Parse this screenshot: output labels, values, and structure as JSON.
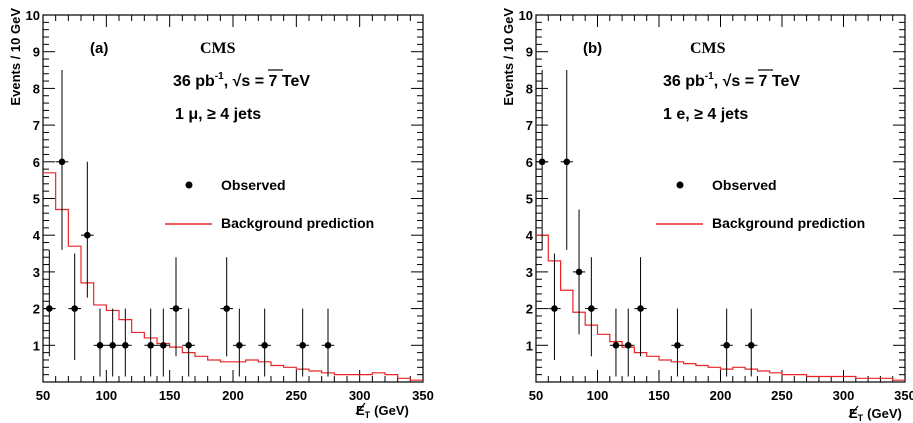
{
  "chart_data": [
    {
      "type": "scatter",
      "panel_label": "(a)",
      "experiment": "CMS",
      "lumi_text": "36 pb",
      "lumi_sup": "-1",
      "energy_text": "s = 7 TeV",
      "selection": "1 μ, ≥ 4 jets",
      "xlabel": "E",
      "xlabel_sub": "T",
      "xlabel_unit": "(GeV)",
      "ylabel": "Events / 10 GeV",
      "xlim": [
        50,
        350
      ],
      "ylim": [
        0,
        10
      ],
      "x_ticks": [
        "50",
        "100",
        "150",
        "200",
        "250",
        "300",
        "350"
      ],
      "y_ticks": [
        "1",
        "2",
        "3",
        "4",
        "5",
        "6",
        "7",
        "8",
        "9",
        "10"
      ],
      "legend_position": "right",
      "series": [
        {
          "name": "Observed",
          "color": "#000000",
          "points": [
            {
              "x": 55,
              "y": 2,
              "lo": 0.7,
              "hi": 3.6
            },
            {
              "x": 65,
              "y": 6,
              "lo": 3.6,
              "hi": 8.5
            },
            {
              "x": 75,
              "y": 2,
              "lo": 0.6,
              "hi": 3.5
            },
            {
              "x": 85,
              "y": 4,
              "lo": 2.3,
              "hi": 6.0
            },
            {
              "x": 95,
              "y": 1,
              "lo": 0.15,
              "hi": 2.0
            },
            {
              "x": 105,
              "y": 1,
              "lo": 0.15,
              "hi": 2.0
            },
            {
              "x": 115,
              "y": 1,
              "lo": 0.15,
              "hi": 2.0
            },
            {
              "x": 135,
              "y": 1,
              "lo": 0.15,
              "hi": 2.0
            },
            {
              "x": 145,
              "y": 1,
              "lo": 0.15,
              "hi": 2.0
            },
            {
              "x": 155,
              "y": 2,
              "lo": 0.7,
              "hi": 3.4
            },
            {
              "x": 165,
              "y": 1,
              "lo": 0.15,
              "hi": 2.0
            },
            {
              "x": 195,
              "y": 2,
              "lo": 0.7,
              "hi": 3.4
            },
            {
              "x": 205,
              "y": 1,
              "lo": 0.15,
              "hi": 2.0
            },
            {
              "x": 225,
              "y": 1,
              "lo": 0.15,
              "hi": 2.0
            },
            {
              "x": 255,
              "y": 1,
              "lo": 0.15,
              "hi": 2.0
            },
            {
              "x": 275,
              "y": 1,
              "lo": 0.15,
              "hi": 2.0
            }
          ]
        },
        {
          "name": "Background prediction",
          "color": "#e8262a",
          "bin_edges": [
            50,
            60,
            70,
            80,
            90,
            100,
            110,
            120,
            130,
            140,
            150,
            160,
            170,
            180,
            190,
            200,
            210,
            220,
            230,
            240,
            250,
            260,
            270,
            280,
            290,
            300,
            310,
            320,
            330,
            340,
            350
          ],
          "values": [
            5.7,
            4.7,
            3.7,
            2.7,
            2.1,
            1.95,
            1.7,
            1.35,
            1.2,
            1.05,
            0.95,
            0.8,
            0.7,
            0.6,
            0.55,
            0.55,
            0.6,
            0.55,
            0.45,
            0.4,
            0.35,
            0.3,
            0.25,
            0.2,
            0.2,
            0.2,
            0.25,
            0.2,
            0.1,
            0.05
          ]
        }
      ]
    },
    {
      "type": "scatter",
      "panel_label": "(b)",
      "experiment": "CMS",
      "lumi_text": "36 pb",
      "lumi_sup": "-1",
      "energy_text": "s = 7 TeV",
      "selection": "1 e, ≥ 4 jets",
      "xlabel": "E",
      "xlabel_sub": "T",
      "xlabel_unit": "(GeV)",
      "ylabel": "Events / 10 GeV",
      "xlim": [
        50,
        350
      ],
      "ylim": [
        0,
        10
      ],
      "x_ticks": [
        "50",
        "100",
        "150",
        "200",
        "250",
        "300",
        "350"
      ],
      "y_ticks": [
        "1",
        "2",
        "3",
        "4",
        "5",
        "6",
        "7",
        "8",
        "9",
        "10"
      ],
      "legend_position": "right",
      "series": [
        {
          "name": "Observed",
          "color": "#000000",
          "points": [
            {
              "x": 55,
              "y": 6,
              "lo": 3.6,
              "hi": 8.5
            },
            {
              "x": 65,
              "y": 2,
              "lo": 0.6,
              "hi": 3.5
            },
            {
              "x": 75,
              "y": 6,
              "lo": 3.6,
              "hi": 8.5
            },
            {
              "x": 85,
              "y": 3,
              "lo": 1.3,
              "hi": 4.7
            },
            {
              "x": 95,
              "y": 2,
              "lo": 0.7,
              "hi": 3.4
            },
            {
              "x": 115,
              "y": 1,
              "lo": 0.15,
              "hi": 2.0
            },
            {
              "x": 125,
              "y": 1,
              "lo": 0.15,
              "hi": 2.0
            },
            {
              "x": 135,
              "y": 2,
              "lo": 0.7,
              "hi": 3.4
            },
            {
              "x": 165,
              "y": 1,
              "lo": 0.15,
              "hi": 2.0
            },
            {
              "x": 205,
              "y": 1,
              "lo": 0.15,
              "hi": 2.0
            },
            {
              "x": 225,
              "y": 1,
              "lo": 0.15,
              "hi": 2.0
            }
          ]
        },
        {
          "name": "Background prediction",
          "color": "#e8262a",
          "bin_edges": [
            50,
            60,
            70,
            80,
            90,
            100,
            110,
            120,
            130,
            140,
            150,
            160,
            170,
            180,
            190,
            200,
            210,
            220,
            230,
            240,
            250,
            260,
            270,
            280,
            290,
            300,
            310,
            320,
            330,
            340,
            350
          ],
          "values": [
            4.0,
            3.3,
            2.5,
            1.9,
            1.55,
            1.3,
            1.1,
            0.95,
            0.8,
            0.7,
            0.6,
            0.55,
            0.5,
            0.45,
            0.4,
            0.35,
            0.4,
            0.35,
            0.3,
            0.25,
            0.2,
            0.2,
            0.15,
            0.15,
            0.15,
            0.15,
            0.1,
            0.1,
            0.1,
            0.05
          ]
        }
      ]
    }
  ]
}
